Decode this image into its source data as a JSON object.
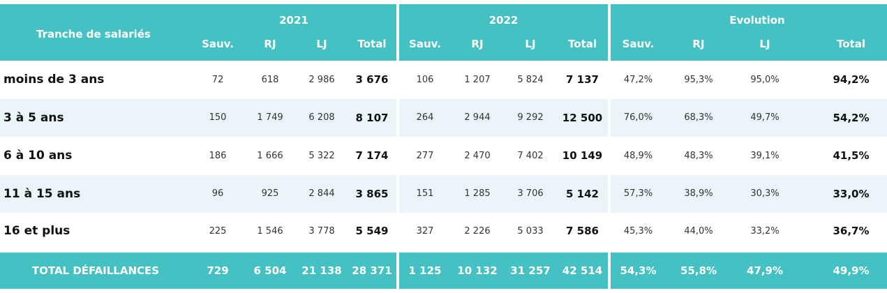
{
  "header": {
    "row_label": "Tranche de salariés",
    "groups": [
      "2021",
      "2022",
      "Evolution"
    ],
    "subcolumns": [
      "Sauv.",
      "RJ",
      "LJ",
      "Total"
    ]
  },
  "rows": [
    {
      "label": "moins de 3 ans",
      "y2021": [
        "72",
        "618",
        "2 986",
        "3 676"
      ],
      "y2022": [
        "106",
        "1 207",
        "5 824",
        "7 137"
      ],
      "evolution": [
        "47,2%",
        "95,3%",
        "95,0%",
        "94,2%"
      ]
    },
    {
      "label": "3 à 5 ans",
      "y2021": [
        "150",
        "1 749",
        "6 208",
        "8 107"
      ],
      "y2022": [
        "264",
        "2 944",
        "9 292",
        "12 500"
      ],
      "evolution": [
        "76,0%",
        "68,3%",
        "49,7%",
        "54,2%"
      ]
    },
    {
      "label": "6 à 10 ans",
      "y2021": [
        "186",
        "1 666",
        "5 322",
        "7 174"
      ],
      "y2022": [
        "277",
        "2 470",
        "7 402",
        "10 149"
      ],
      "evolution": [
        "48,9%",
        "48,3%",
        "39,1%",
        "41,5%"
      ]
    },
    {
      "label": "11 à 15 ans",
      "y2021": [
        "96",
        "925",
        "2 844",
        "3 865"
      ],
      "y2022": [
        "151",
        "1 285",
        "3 706",
        "5 142"
      ],
      "evolution": [
        "57,3%",
        "38,9%",
        "30,3%",
        "33,0%"
      ]
    },
    {
      "label": "16 et plus",
      "y2021": [
        "225",
        "1 546",
        "3 778",
        "5 549"
      ],
      "y2022": [
        "327",
        "2 226",
        "5 033",
        "7 586"
      ],
      "evolution": [
        "45,3%",
        "44,0%",
        "33,2%",
        "36,7%"
      ]
    }
  ],
  "total": {
    "label": "TOTAL DÉFAILLANCES",
    "y2021": [
      "729",
      "6 504",
      "21 138",
      "28 371"
    ],
    "y2022": [
      "1 125",
      "10 132",
      "31 257",
      "42 514"
    ],
    "evolution": [
      "54,3%",
      "55,8%",
      "47,9%",
      "49,9%"
    ]
  },
  "colors": {
    "header_teal": "#45c0c3",
    "alt_row": "#eaf4f9"
  }
}
